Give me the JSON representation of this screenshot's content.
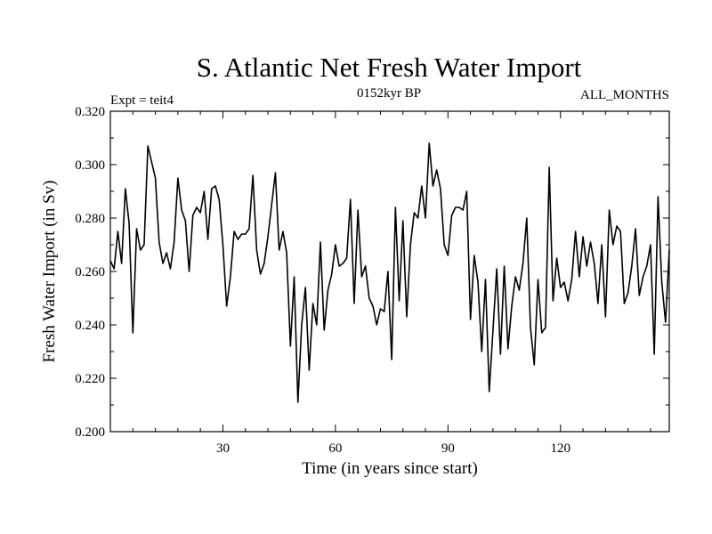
{
  "chart_data": {
    "type": "line",
    "title": "S. Atlantic Net Fresh Water Import",
    "subtitle_left": "Expt = teit4",
    "subtitle_center": "0152kyr BP",
    "subtitle_right": "ALL_MONTHS",
    "xlabel": "Time (in years since start)",
    "ylabel": "Fresh Water Import (in Sv)",
    "xlim": [
      0,
      149
    ],
    "ylim": [
      0.2,
      0.32
    ],
    "xticks": [
      30,
      60,
      90,
      120
    ],
    "yticks": [
      0.2,
      0.22,
      0.24,
      0.26,
      0.28,
      0.3,
      0.32
    ],
    "ytick_labels": [
      "0.200",
      "0.220",
      "0.240",
      "0.260",
      "0.280",
      "0.300",
      "0.320"
    ],
    "series": [
      {
        "name": "Net Fresh Water Import",
        "color": "#000000",
        "x": [
          0,
          1,
          2,
          3,
          4,
          5,
          6,
          7,
          8,
          9,
          10,
          11,
          12,
          13,
          14,
          15,
          16,
          17,
          18,
          19,
          20,
          21,
          22,
          23,
          24,
          25,
          26,
          27,
          28,
          29,
          30,
          31,
          32,
          33,
          34,
          35,
          36,
          37,
          38,
          39,
          40,
          41,
          42,
          43,
          44,
          45,
          46,
          47,
          48,
          49,
          50,
          51,
          52,
          53,
          54,
          55,
          56,
          57,
          58,
          59,
          60,
          61,
          62,
          63,
          64,
          65,
          66,
          67,
          68,
          69,
          70,
          71,
          72,
          73,
          74,
          75,
          76,
          77,
          78,
          79,
          80,
          81,
          82,
          83,
          84,
          85,
          86,
          87,
          88,
          89,
          90,
          91,
          92,
          93,
          94,
          95,
          96,
          97,
          98,
          99,
          100,
          101,
          102,
          103,
          104,
          105,
          106,
          107,
          108,
          109,
          110,
          111,
          112,
          113,
          114,
          115,
          116,
          117,
          118,
          119,
          120,
          121,
          122,
          123,
          124,
          125,
          126,
          127,
          128,
          129,
          130,
          131,
          132,
          133,
          134,
          135,
          136,
          137,
          138,
          139,
          140,
          141,
          142,
          143,
          144,
          145,
          146,
          147,
          148,
          149
        ],
        "values": [
          0.264,
          0.261,
          0.275,
          0.263,
          0.291,
          0.278,
          0.237,
          0.276,
          0.268,
          0.27,
          0.307,
          0.301,
          0.295,
          0.271,
          0.263,
          0.267,
          0.261,
          0.271,
          0.295,
          0.283,
          0.279,
          0.26,
          0.281,
          0.284,
          0.282,
          0.29,
          0.272,
          0.291,
          0.292,
          0.287,
          0.27,
          0.247,
          0.258,
          0.275,
          0.272,
          0.274,
          0.274,
          0.276,
          0.296,
          0.268,
          0.259,
          0.263,
          0.273,
          0.285,
          0.297,
          0.268,
          0.275,
          0.267,
          0.232,
          0.258,
          0.211,
          0.24,
          0.254,
          0.223,
          0.248,
          0.24,
          0.271,
          0.238,
          0.253,
          0.259,
          0.27,
          0.262,
          0.263,
          0.265,
          0.287,
          0.248,
          0.283,
          0.258,
          0.262,
          0.25,
          0.247,
          0.24,
          0.246,
          0.245,
          0.26,
          0.227,
          0.284,
          0.249,
          0.279,
          0.243,
          0.27,
          0.282,
          0.28,
          0.292,
          0.28,
          0.308,
          0.292,
          0.298,
          0.291,
          0.27,
          0.266,
          0.281,
          0.284,
          0.284,
          0.283,
          0.29,
          0.242,
          0.266,
          0.256,
          0.23,
          0.257,
          0.215,
          0.238,
          0.261,
          0.229,
          0.262,
          0.231,
          0.247,
          0.258,
          0.253,
          0.263,
          0.28,
          0.239,
          0.225,
          0.257,
          0.237,
          0.239,
          0.299,
          0.249,
          0.265,
          0.254,
          0.256,
          0.249,
          0.257,
          0.275,
          0.258,
          0.273,
          0.262,
          0.271,
          0.263,
          0.248,
          0.27,
          0.243,
          0.283,
          0.27,
          0.277,
          0.275,
          0.248,
          0.252,
          0.262,
          0.276,
          0.251,
          0.258,
          0.262,
          0.27,
          0.229,
          0.288,
          0.256,
          0.241,
          0.268
        ]
      }
    ]
  }
}
